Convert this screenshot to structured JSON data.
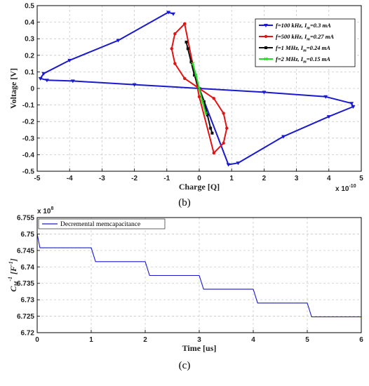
{
  "chart_data": [
    {
      "type": "line",
      "panel_label": "(b)",
      "xlabel": "Charge [Q]",
      "ylabel": "Voltage [V]",
      "x_multiplier": "x 10",
      "x_exponent": "-10",
      "xlim": [
        -5,
        5
      ],
      "ylim": [
        -0.5,
        0.5
      ],
      "xticks": [
        "-5",
        "-4",
        "-3",
        "-2",
        "-1",
        "0",
        "1",
        "2",
        "3",
        "4",
        "5"
      ],
      "yticks": [
        "-0.5",
        "-0.4",
        "-0.3",
        "-0.2",
        "-0.1",
        "0",
        "0.1",
        "0.2",
        "0.3",
        "0.4",
        "0.5"
      ],
      "grid": true,
      "legend_position": "top-right",
      "series": [
        {
          "name": "f=100 kHz, Im=0.3 mA",
          "legend_parts": [
            "f=100 kHz, I",
            "m",
            "=0.3 mA"
          ],
          "color": "#1a1acc",
          "marker": "triangle",
          "x": [
            -0.8,
            -0.95,
            -2.5,
            -4.0,
            -4.8,
            -4.9,
            -4.7,
            -3.9,
            -2.0,
            0.0,
            2.0,
            3.9,
            4.7,
            4.75,
            4.0,
            2.6,
            1.2,
            0.9,
            0.0
          ],
          "y": [
            0.45,
            0.46,
            0.29,
            0.17,
            0.09,
            0.06,
            0.05,
            0.045,
            0.023,
            0.0,
            -0.023,
            -0.05,
            -0.09,
            -0.11,
            -0.17,
            -0.29,
            -0.45,
            -0.46,
            0.0
          ]
        },
        {
          "name": "f=500 kHz, Im=0.27 mA",
          "legend_parts": [
            "f=500 kHz, I",
            "m",
            "=0.27 mA"
          ],
          "color": "#e01414",
          "marker": "circle",
          "x": [
            -0.45,
            -0.75,
            -0.85,
            -0.75,
            -0.45,
            0.0,
            0.45,
            0.75,
            0.85,
            0.75,
            0.45,
            0.0,
            -0.45
          ],
          "y": [
            0.39,
            0.33,
            0.24,
            0.15,
            0.06,
            0.0,
            -0.06,
            -0.15,
            -0.24,
            -0.33,
            -0.39,
            -0.05,
            0.39
          ]
        },
        {
          "name": "f=1 MHz, Im=0.24 mA",
          "legend_parts": [
            "f=1 MHz, I",
            "m",
            "=0.24 mA"
          ],
          "color": "#111111",
          "marker": "square",
          "x": [
            -0.4,
            -0.35,
            -0.25,
            -0.15,
            0.0,
            0.15,
            0.25,
            0.35,
            0.4
          ],
          "y": [
            0.28,
            0.24,
            0.16,
            0.08,
            0.0,
            -0.08,
            -0.16,
            -0.24,
            -0.27
          ]
        },
        {
          "name": "f=2 MHz, Im=0.15 mA",
          "legend_parts": [
            "f=2 MHz, I",
            "m",
            "=0.15 mA"
          ],
          "color": "#22dd22",
          "marker": "x",
          "x": [
            -0.2,
            -0.1,
            0.0,
            0.1,
            0.2
          ],
          "y": [
            0.15,
            0.08,
            0.0,
            -0.08,
            -0.15
          ]
        }
      ]
    },
    {
      "type": "line",
      "panel_label": "(c)",
      "xlabel": "Time [us]",
      "ylabel_parts": [
        "C",
        "M",
        "-1",
        " [F",
        "-1",
        "]"
      ],
      "y_multiplier": "x 10",
      "y_exponent": "8",
      "xlim": [
        0,
        6
      ],
      "ylim": [
        6.72,
        6.755
      ],
      "xticks": [
        "0",
        "1",
        "2",
        "3",
        "4",
        "5",
        "6"
      ],
      "yticks": [
        "6.72",
        "6.725",
        "6.73",
        "6.735",
        "6.74",
        "6.745",
        "6.75",
        "6.755"
      ],
      "grid": true,
      "legend_position": "top-left",
      "series": [
        {
          "name": "Decremental memcapacitance",
          "color": "#1a1acc",
          "x": [
            0.0,
            0.05,
            1.0,
            1.08,
            2.0,
            2.08,
            3.0,
            3.08,
            4.0,
            4.08,
            5.0,
            5.08,
            6.0
          ],
          "y": [
            6.75,
            6.7458,
            6.7458,
            6.7416,
            6.7416,
            6.7374,
            6.7374,
            6.7332,
            6.7332,
            6.729,
            6.729,
            6.7248,
            6.7248
          ]
        }
      ]
    }
  ]
}
